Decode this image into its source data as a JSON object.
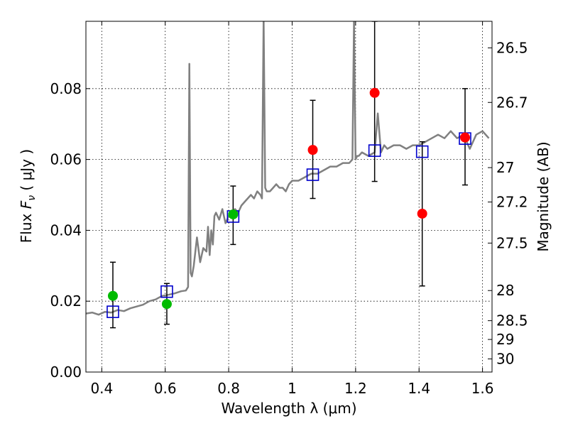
{
  "chart_data": {
    "type": "scatter",
    "xlabel": "Wavelength  λ (μm)",
    "ylabel_main": "Flux ",
    "ylabel_symbol": "F",
    "ylabel_sub": "ν",
    "ylabel_unit": " ( μJy )",
    "y2label": "Magnitude (AB)",
    "xlim": [
      0.35,
      1.63
    ],
    "ylim": [
      0.0,
      0.099
    ],
    "grid": true,
    "x_ticks": [
      0.4,
      0.6,
      0.8,
      1.0,
      1.2,
      1.4,
      1.6
    ],
    "x_tick_labels": [
      "0.4",
      "0.6",
      "0.8",
      "1",
      "1.2",
      "1.4",
      "1.6"
    ],
    "y_ticks": [
      0.0,
      0.02,
      0.04,
      0.06,
      0.08
    ],
    "y_tick_labels": [
      "0.00",
      "0.02",
      "0.04",
      "0.06",
      "0.08"
    ],
    "mag_ticks": [
      {
        "label": "26.5",
        "flux": 0.0915
      },
      {
        "label": "26.7",
        "flux": 0.0761
      },
      {
        "label": "27",
        "flux": 0.0577
      },
      {
        "label": "27.2",
        "flux": 0.048
      },
      {
        "label": "27.5",
        "flux": 0.0364
      },
      {
        "label": "28",
        "flux": 0.023
      },
      {
        "label": "28.5",
        "flux": 0.0145
      },
      {
        "label": "29",
        "flux": 0.0092
      },
      {
        "label": "30",
        "flux": 0.0037
      }
    ],
    "series": [
      {
        "name": "model-spectrum",
        "kind": "line",
        "color": "#808080",
        "x": [
          0.35,
          0.37,
          0.39,
          0.41,
          0.43,
          0.45,
          0.47,
          0.49,
          0.51,
          0.53,
          0.55,
          0.57,
          0.59,
          0.61,
          0.63,
          0.65,
          0.665,
          0.672,
          0.676,
          0.68,
          0.684,
          0.69,
          0.7,
          0.71,
          0.72,
          0.73,
          0.735,
          0.74,
          0.745,
          0.75,
          0.755,
          0.76,
          0.77,
          0.78,
          0.79,
          0.8,
          0.81,
          0.82,
          0.83,
          0.84,
          0.85,
          0.86,
          0.87,
          0.88,
          0.89,
          0.9,
          0.905,
          0.91,
          0.915,
          0.92,
          0.93,
          0.94,
          0.95,
          0.96,
          0.97,
          0.98,
          0.99,
          1.0,
          1.02,
          1.04,
          1.06,
          1.08,
          1.1,
          1.12,
          1.14,
          1.16,
          1.18,
          1.19,
          1.195,
          1.2,
          1.205,
          1.21,
          1.22,
          1.24,
          1.26,
          1.27,
          1.28,
          1.29,
          1.3,
          1.32,
          1.34,
          1.36,
          1.38,
          1.4,
          1.42,
          1.44,
          1.46,
          1.48,
          1.5,
          1.52,
          1.54,
          1.56,
          1.58,
          1.6,
          1.62
        ],
        "y": [
          0.0165,
          0.0168,
          0.0162,
          0.017,
          0.0168,
          0.0175,
          0.0172,
          0.018,
          0.0185,
          0.019,
          0.02,
          0.0205,
          0.0215,
          0.0218,
          0.0222,
          0.0228,
          0.023,
          0.024,
          0.087,
          0.028,
          0.027,
          0.03,
          0.038,
          0.031,
          0.035,
          0.034,
          0.041,
          0.033,
          0.04,
          0.036,
          0.044,
          0.045,
          0.043,
          0.046,
          0.042,
          0.044,
          0.045,
          0.046,
          0.045,
          0.047,
          0.048,
          0.049,
          0.05,
          0.049,
          0.051,
          0.05,
          0.049,
          0.1,
          0.052,
          0.051,
          0.051,
          0.052,
          0.053,
          0.052,
          0.052,
          0.051,
          0.053,
          0.054,
          0.054,
          0.055,
          0.056,
          0.056,
          0.057,
          0.058,
          0.058,
          0.059,
          0.059,
          0.06,
          0.099,
          0.06,
          0.061,
          0.061,
          0.062,
          0.061,
          0.062,
          0.073,
          0.062,
          0.064,
          0.063,
          0.064,
          0.064,
          0.063,
          0.064,
          0.064,
          0.065,
          0.066,
          0.067,
          0.066,
          0.068,
          0.066,
          0.067,
          0.063,
          0.067,
          0.068,
          0.066
        ]
      },
      {
        "name": "model-photometry",
        "kind": "open-square",
        "color": "#0000cc",
        "x": [
          0.435,
          0.605,
          0.814,
          1.065,
          1.26,
          1.41,
          1.545
        ],
        "y": [
          0.017,
          0.0227,
          0.0439,
          0.0557,
          0.0625,
          0.0622,
          0.0659
        ]
      },
      {
        "name": "optical-detections",
        "kind": "filled-circle",
        "color": "#00bb00",
        "x": [
          0.435,
          0.605,
          0.814
        ],
        "y": [
          0.0215,
          0.0192,
          0.0445
        ],
        "yerr_low": [
          0.0125,
          0.0135,
          0.036
        ],
        "yerr_high": [
          0.031,
          0.025,
          0.0525
        ]
      },
      {
        "name": "nir-detections",
        "kind": "filled-circle",
        "color": "#ff0000",
        "x": [
          1.065,
          1.26,
          1.41,
          1.545
        ],
        "y": [
          0.0627,
          0.0788,
          0.0447,
          0.0662
        ],
        "yerr_low": [
          0.049,
          0.0538,
          0.0243,
          0.0528
        ],
        "yerr_high": [
          0.0767,
          0.099,
          0.065,
          0.08
        ]
      }
    ]
  }
}
